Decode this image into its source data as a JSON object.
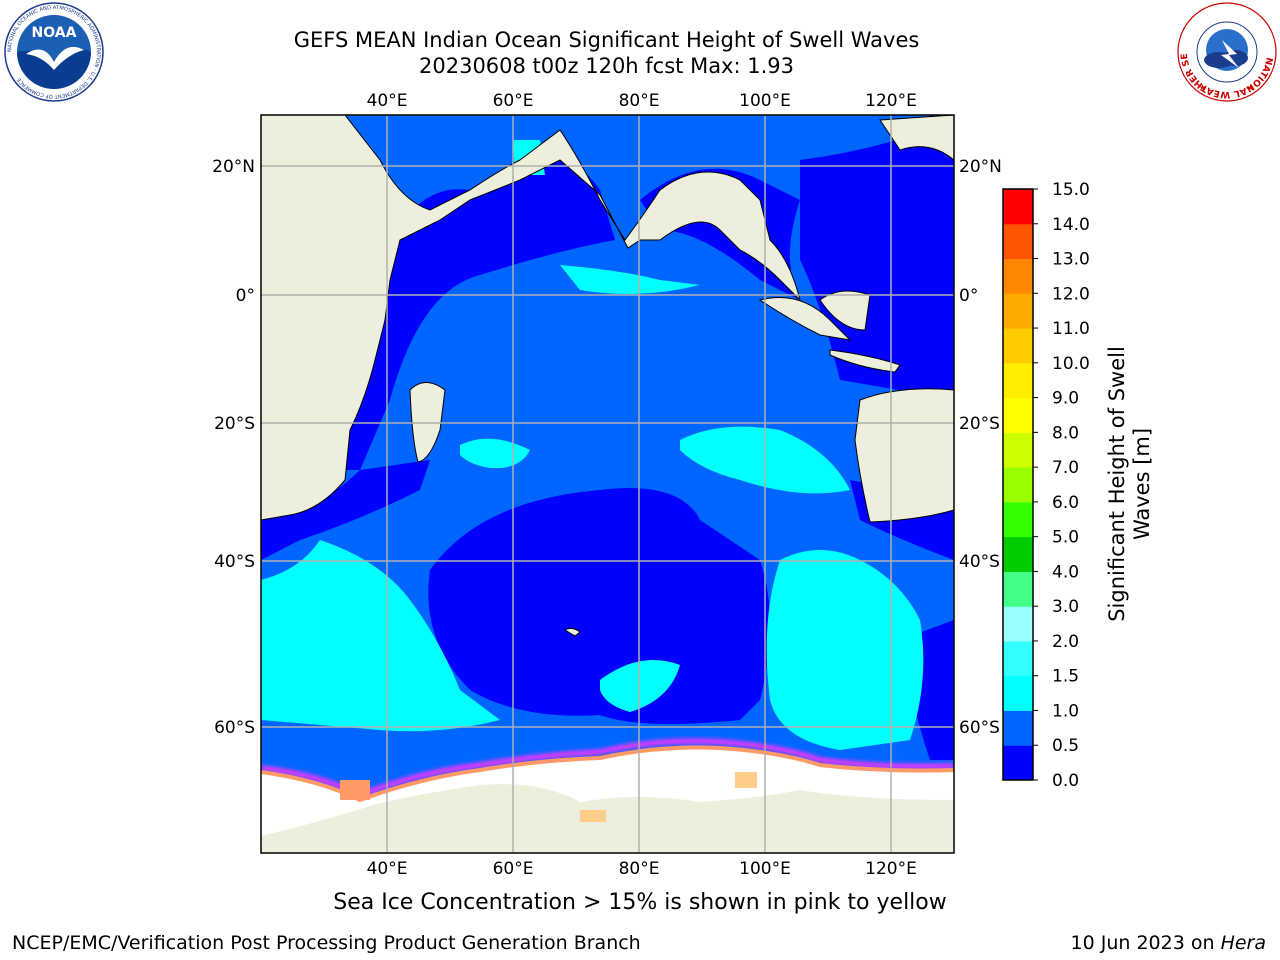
{
  "title": {
    "line1": "GEFS MEAN Indian Ocean Significant Height of Swell Waves",
    "line2": "20230608 t00z 120h fcst   Max: 1.93"
  },
  "map": {
    "lon_labels": [
      "40°E",
      "60°E",
      "80°E",
      "100°E",
      "120°E"
    ],
    "lat_labels_left": [
      "20°N",
      "0°",
      "20°S",
      "40°S",
      "60°S"
    ],
    "lat_labels_right": [
      "20°N",
      "0°",
      "20°S",
      "40°S",
      "60°S"
    ],
    "land_color": "#eeeedd",
    "ice_color": "#ffffff",
    "grid_color": "#b0b0b0",
    "ice_edge_colors": [
      "#ff33ff",
      "#ff9966",
      "#ffcc88"
    ]
  },
  "colorbar": {
    "title_line1": "Significant Height of Swell",
    "title_line2": "Waves [m]",
    "ticks": [
      "0.0",
      "0.5",
      "1.0",
      "1.5",
      "2.0",
      "3.0",
      "4.0",
      "5.0",
      "6.0",
      "7.0",
      "8.0",
      "9.0",
      "10.0",
      "11.0",
      "12.0",
      "13.0",
      "14.0",
      "15.0"
    ],
    "colors": [
      "#0000ff",
      "#0066ff",
      "#00ffff",
      "#33ffff",
      "#99ffff",
      "#44ff88",
      "#00cc00",
      "#33ff00",
      "#99ff00",
      "#ccff00",
      "#ffff00",
      "#ffee00",
      "#ffcc00",
      "#ffaa00",
      "#ff8800",
      "#ff5500",
      "#ff0000"
    ]
  },
  "logos": {
    "noaa_text": "NOAA",
    "noaa_ring": "NATIONAL OCEANIC AND ATMOSPHERIC ADMINISTRATION · U.S. DEPARTMENT OF COMMERCE",
    "nws_ring": "NATIONAL WEATHER SERVICE"
  },
  "footer": {
    "note": "Sea Ice Concentration > 15% is shown in pink to yellow",
    "credit": "NCEP/EMC/Verification Post Processing Product Generation Branch",
    "date_prefix": "10 Jun 2023 on ",
    "date_machine": "Hera"
  }
}
